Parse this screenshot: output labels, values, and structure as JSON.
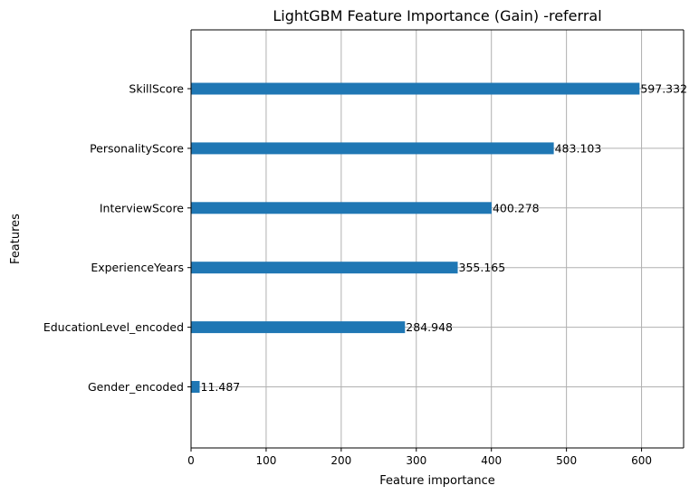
{
  "chart_data": {
    "type": "bar",
    "orientation": "horizontal",
    "title": "LightGBM Feature Importance (Gain) -referral",
    "xlabel": "Feature importance",
    "ylabel": "Features",
    "categories": [
      "SkillScore",
      "PersonalityScore",
      "InterviewScore",
      "ExperienceYears",
      "EducationLevel_encoded",
      "Gender_encoded"
    ],
    "values": [
      597.332,
      483.103,
      400.278,
      355.165,
      284.948,
      11.487
    ],
    "value_labels": [
      "597.332",
      "483.103",
      "400.278",
      "355.165",
      "284.948",
      "11.487"
    ],
    "xlim": [
      0,
      656
    ],
    "xticks": [
      0,
      100,
      200,
      300,
      400,
      500,
      600
    ],
    "xtick_labels": [
      "0",
      "100",
      "200",
      "300",
      "400",
      "500",
      "600"
    ],
    "grid": true,
    "colors": {
      "bar": "#1f77b4",
      "grid": "#b0b0b0",
      "axis": "#000000"
    }
  }
}
